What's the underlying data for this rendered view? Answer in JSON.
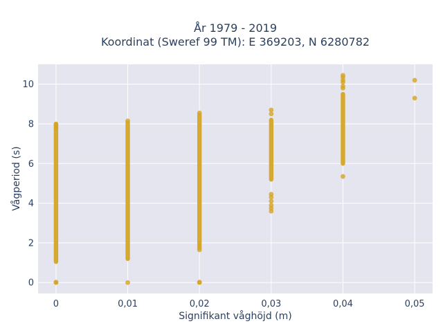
{
  "chart_data": {
    "type": "scatter",
    "title": "År 1979 - 2019",
    "subtitle": "Koordinat (Sweref 99 TM): E 369203, N 6280782",
    "xlabel": "Signifikant våghöjd (m)",
    "ylabel": "Vågperiod (s)",
    "xlim": [
      -0.0025,
      0.0525
    ],
    "ylim": [
      -0.55,
      11.0
    ],
    "x_ticks": [
      0,
      0.01,
      0.02,
      0.03,
      0.04,
      0.05
    ],
    "x_tick_labels": [
      "0",
      "0,01",
      "0,02",
      "0,03",
      "0,04",
      "0,05"
    ],
    "y_ticks": [
      0,
      2,
      4,
      6,
      8,
      10
    ],
    "y_tick_labels": [
      "0",
      "2",
      "4",
      "6",
      "8",
      "10"
    ],
    "grid": true,
    "legend": "none",
    "colors": {
      "marker": "#d4a420",
      "plot_bg": "#e5e5f0",
      "grid": "#ffffff",
      "text": "#2a3f5f"
    },
    "series": [
      {
        "columns": [
          {
            "x": 0,
            "segments": [
              [
                1.05,
                8.0
              ]
            ],
            "points": [
              0,
              0.02,
              7.8,
              7.95
            ]
          },
          {
            "x": 0.01,
            "segments": [
              [
                1.2,
                8.05
              ]
            ],
            "points": [
              0,
              8.15
            ]
          },
          {
            "x": 0.02,
            "segments": [
              [
                1.95,
                8.45
              ]
            ],
            "points": [
              0,
              0.02,
              1.65,
              1.75,
              1.85,
              8.55
            ]
          },
          {
            "x": 0.03,
            "segments": [
              [
                5.2,
                8.2
              ]
            ],
            "points": [
              3.6,
              3.75,
              3.9,
              4.1,
              4.3,
              4.45,
              8.5,
              8.7
            ]
          },
          {
            "x": 0.04,
            "segments": [
              [
                6.0,
                9.5
              ]
            ],
            "points": [
              5.35,
              9.8,
              9.9,
              10.1,
              10.2,
              10.35,
              10.45
            ]
          },
          {
            "x": 0.05,
            "segments": [],
            "points": [
              9.3,
              10.2
            ]
          }
        ]
      }
    ]
  }
}
